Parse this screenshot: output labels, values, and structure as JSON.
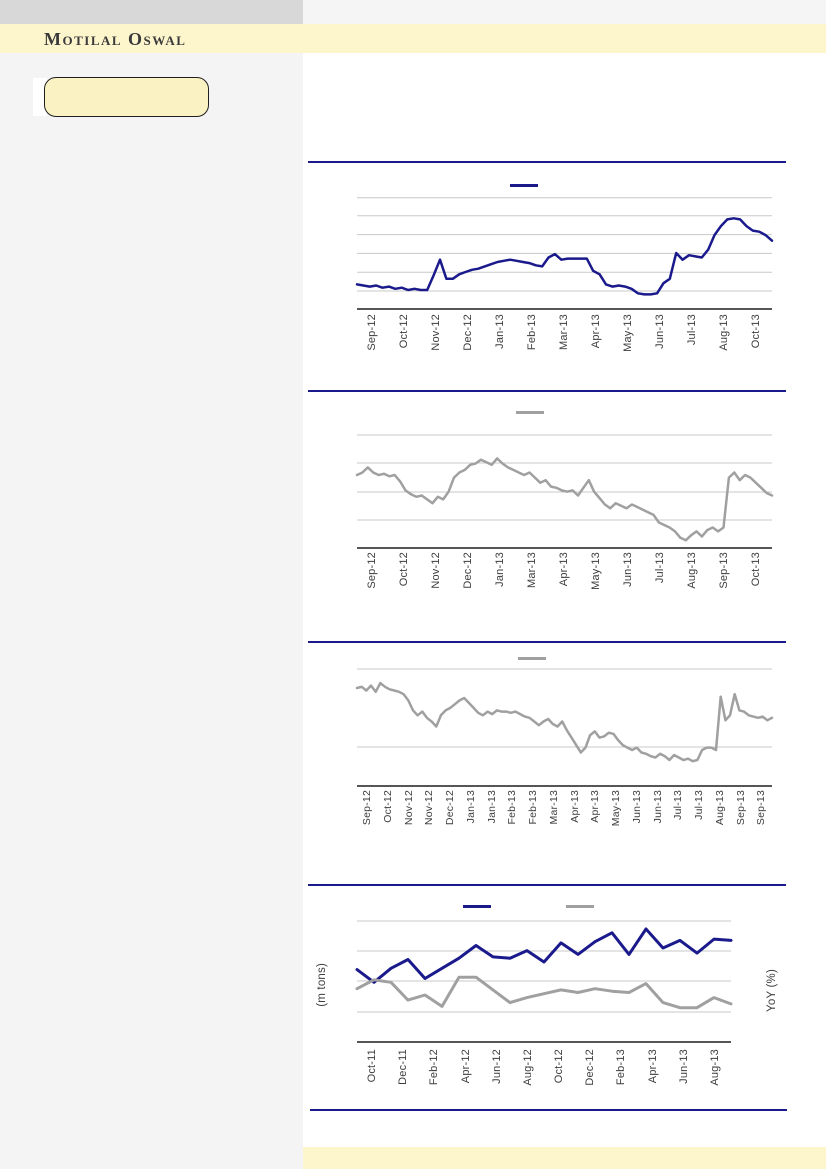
{
  "header": {
    "brand": "Motilal Oswal"
  },
  "highlight_box": {
    "label": ""
  },
  "colors": {
    "navy": "#1a1a8c",
    "gray": "#a0a0a0",
    "gridline": "#c9c9c9",
    "axis": "#1f1f1f",
    "band_yellow": "#fdf6cd",
    "box_yellow": "#fbf2c4"
  },
  "chart_data": [
    {
      "type": "line",
      "title": "",
      "y_scale": "normalized_0_100_no_axis_labels",
      "y_ticks": [],
      "x_ticks": [
        "Sep-12",
        "Oct-12",
        "Nov-12",
        "Dec-12",
        "Jan-13",
        "Feb-13",
        "Mar-13",
        "Apr-13",
        "May-13",
        "Jun-13",
        "Jul-13",
        "Aug-13",
        "Oct-13"
      ],
      "legend": [
        {
          "label": "",
          "color": "#1a1a8c"
        }
      ],
      "series": [
        {
          "name": "series-1",
          "color": "#1a1a8c",
          "values": [
            22,
            21,
            20,
            21,
            19,
            20,
            18,
            19,
            17,
            18,
            17,
            17,
            30,
            44,
            27,
            27,
            31,
            33,
            35,
            36,
            38,
            40,
            42,
            43,
            44,
            43,
            42,
            41,
            39,
            38,
            46,
            49,
            44,
            45,
            45,
            45,
            45,
            34,
            31,
            22,
            20,
            21,
            20,
            18,
            14,
            13,
            13,
            14,
            23,
            27,
            50,
            44,
            48,
            47,
            46,
            53,
            66,
            74,
            80,
            81,
            80,
            74,
            70,
            69,
            66,
            61
          ]
        }
      ]
    },
    {
      "type": "line",
      "title": "",
      "y_scale": "normalized_0_100_no_axis_labels",
      "y_ticks": [],
      "x_ticks": [
        "Sep-12",
        "Oct-12",
        "Nov-12",
        "Dec-12",
        "Jan-13",
        "Mar-13",
        "Apr-13",
        "May-13",
        "Jun-13",
        "Jul-13",
        "Aug-13",
        "Sep-13",
        "Oct-13"
      ],
      "legend": [
        {
          "label": "",
          "color": "#a0a0a0"
        }
      ],
      "series": [
        {
          "name": "series-1",
          "color": "#a0a0a0",
          "values": [
            57,
            59,
            63,
            59,
            57,
            58,
            56,
            57,
            52,
            45,
            42,
            40,
            41,
            38,
            35,
            40,
            38,
            44,
            55,
            59,
            61,
            65,
            66,
            69,
            67,
            65,
            70,
            66,
            63,
            61,
            59,
            57,
            59,
            55,
            51,
            53,
            48,
            47,
            45,
            44,
            45,
            41,
            47,
            53,
            44,
            39,
            34,
            31,
            35,
            33,
            31,
            34,
            32,
            30,
            28,
            26,
            20,
            18,
            16,
            13,
            8,
            6,
            10,
            13,
            9,
            14,
            16,
            13,
            16,
            55,
            59,
            53,
            57,
            55,
            51,
            47,
            43,
            41
          ]
        }
      ]
    },
    {
      "type": "line",
      "title": "",
      "y_scale": "normalized_0_100_no_axis_labels",
      "y_ticks": [],
      "x_ticks": [
        "Sep-12",
        "Oct-12",
        "Nov-12",
        "Nov-12",
        "Dec-12",
        "Jan-13",
        "Jan-13",
        "Feb-13",
        "Feb-13",
        "Mar-13",
        "Apr-13",
        "Apr-13",
        "May-13",
        "Jun-13",
        "Jun-13",
        "Jul-13",
        "Jul-13",
        "Aug-13",
        "Sep-13",
        "Sep-13"
      ],
      "legend": [
        {
          "label": "",
          "color": "#a0a0a0"
        }
      ],
      "series": [
        {
          "name": "series-1",
          "color": "#a0a0a0",
          "values": [
            79,
            80,
            77,
            81,
            76,
            83,
            80,
            78,
            77,
            76,
            74,
            69,
            61,
            57,
            60,
            55,
            52,
            48,
            57,
            61,
            63,
            66,
            69,
            71,
            67,
            63,
            59,
            57,
            60,
            58,
            61,
            60,
            60,
            59,
            60,
            58,
            56,
            55,
            52,
            49,
            52,
            54,
            50,
            48,
            52,
            45,
            39,
            33,
            27,
            31,
            41,
            44,
            39,
            40,
            43,
            42,
            37,
            33,
            31,
            29,
            31,
            27,
            26,
            24,
            23,
            26,
            24,
            21,
            25,
            23,
            21,
            22,
            20,
            21,
            29,
            31,
            31,
            29,
            72,
            53,
            57,
            74,
            61,
            60,
            57,
            56,
            55,
            56,
            53,
            55
          ]
        }
      ]
    },
    {
      "type": "line",
      "title": "",
      "ylabel_left": "(m tons)",
      "ylabel_right": "YoY (%)",
      "y_scale": "normalized_0_100_no_axis_labels",
      "y_ticks": [],
      "x_ticks": [
        "Oct-11",
        "Dec-11",
        "Feb-12",
        "Apr-12",
        "Jun-12",
        "Aug-12",
        "Oct-12",
        "Dec-12",
        "Feb-13",
        "Apr-13",
        "Jun-13",
        "Aug-13"
      ],
      "legend": [
        {
          "label": "",
          "color": "#1a1a8c"
        },
        {
          "label": "",
          "color": "#a0a0a0"
        }
      ],
      "series": [
        {
          "name": "series-1",
          "color": "#1a1a8c",
          "values": [
            57,
            47,
            58,
            65,
            50,
            58,
            66,
            76,
            67,
            66,
            72,
            63,
            78,
            69,
            79,
            86,
            69,
            89,
            74,
            80,
            70,
            81,
            80
          ]
        },
        {
          "name": "series-2",
          "color": "#a0a0a0",
          "values": [
            42,
            49,
            47,
            33,
            37,
            28,
            51,
            51,
            41,
            31,
            35,
            38,
            41,
            39,
            42,
            40,
            39,
            46,
            31,
            27,
            27,
            35,
            30
          ]
        }
      ]
    }
  ]
}
